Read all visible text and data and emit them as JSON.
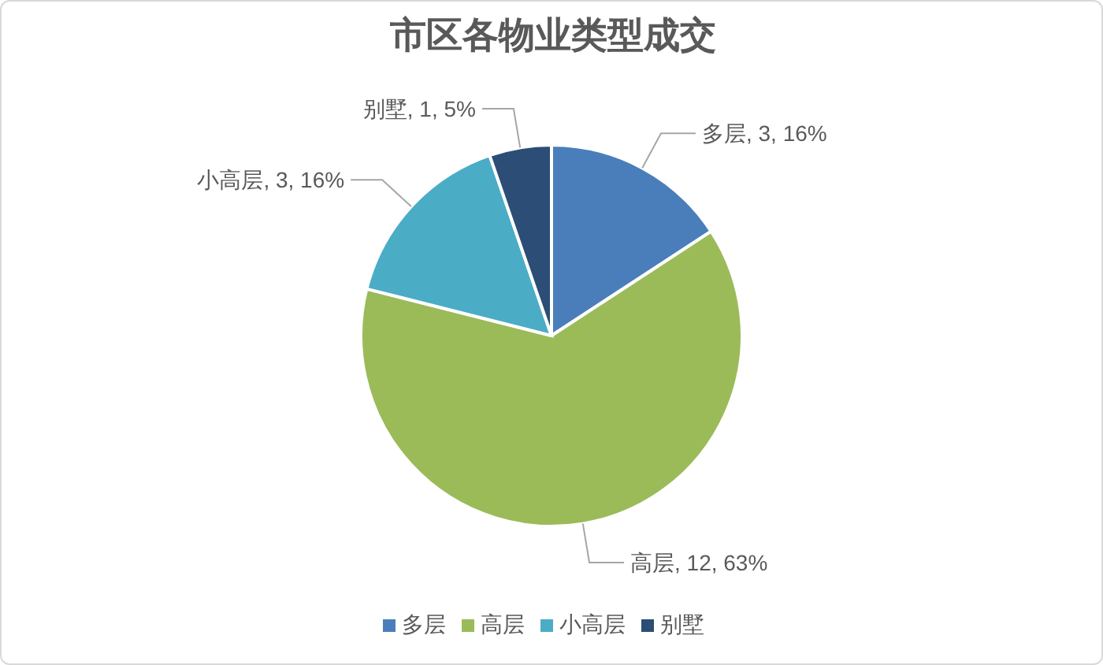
{
  "chart_data": {
    "type": "pie",
    "title": "市区各物业类型成交",
    "categories": [
      "多层",
      "高层",
      "小高层",
      "别墅"
    ],
    "values": [
      3,
      12,
      3,
      1
    ],
    "colors": [
      "#4a7ebb",
      "#9bbb59",
      "#4bacc6",
      "#2c4d75"
    ],
    "value_labels": [
      "多层, 3, 16%",
      "高层, 12, 63%",
      "小高层, 3, 16%",
      "别墅, 1, 5%"
    ],
    "legend": "bottom"
  }
}
